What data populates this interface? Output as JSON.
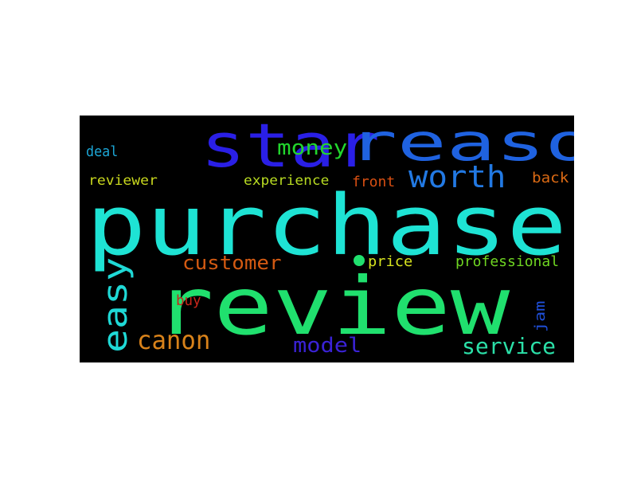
{
  "words": [
    {
      "id": "purchase",
      "text": "purchase",
      "color": "#1ee3d4"
    },
    {
      "id": "review",
      "text": "review",
      "color": "#20e06e"
    },
    {
      "id": "star",
      "text": "star",
      "color": "#2a1fe6"
    },
    {
      "id": "reason",
      "text": "reason",
      "color": "#1f62e0"
    },
    {
      "id": "worth",
      "text": "worth",
      "color": "#2279e3"
    },
    {
      "id": "money",
      "text": "money",
      "color": "#22d62d"
    },
    {
      "id": "easy",
      "text": "easy",
      "color": "#1fd9d6"
    },
    {
      "id": "customer",
      "text": "customer",
      "color": "#d45a12"
    },
    {
      "id": "canon",
      "text": "canon",
      "color": "#d8821a"
    },
    {
      "id": "model",
      "text": "model",
      "color": "#3a22d6"
    },
    {
      "id": "service",
      "text": "service",
      "color": "#2be0a8"
    },
    {
      "id": "deal",
      "text": "deal",
      "color": "#1ca6d6"
    },
    {
      "id": "reviewer",
      "text": "reviewer",
      "color": "#c9d81e"
    },
    {
      "id": "experience",
      "text": "experience",
      "color": "#b8db22"
    },
    {
      "id": "front",
      "text": "front",
      "color": "#d84f12"
    },
    {
      "id": "back",
      "text": "back",
      "color": "#db6a14"
    },
    {
      "id": "price",
      "text": "price",
      "color": "#d6e21e"
    },
    {
      "id": "professional",
      "text": "professional",
      "color": "#6fd622"
    },
    {
      "id": "buy",
      "text": "buy",
      "color": "#c7261b"
    },
    {
      "id": "jam",
      "text": "jam",
      "color": "#1f4fd8"
    }
  ],
  "dot_color": "#20e06e"
}
